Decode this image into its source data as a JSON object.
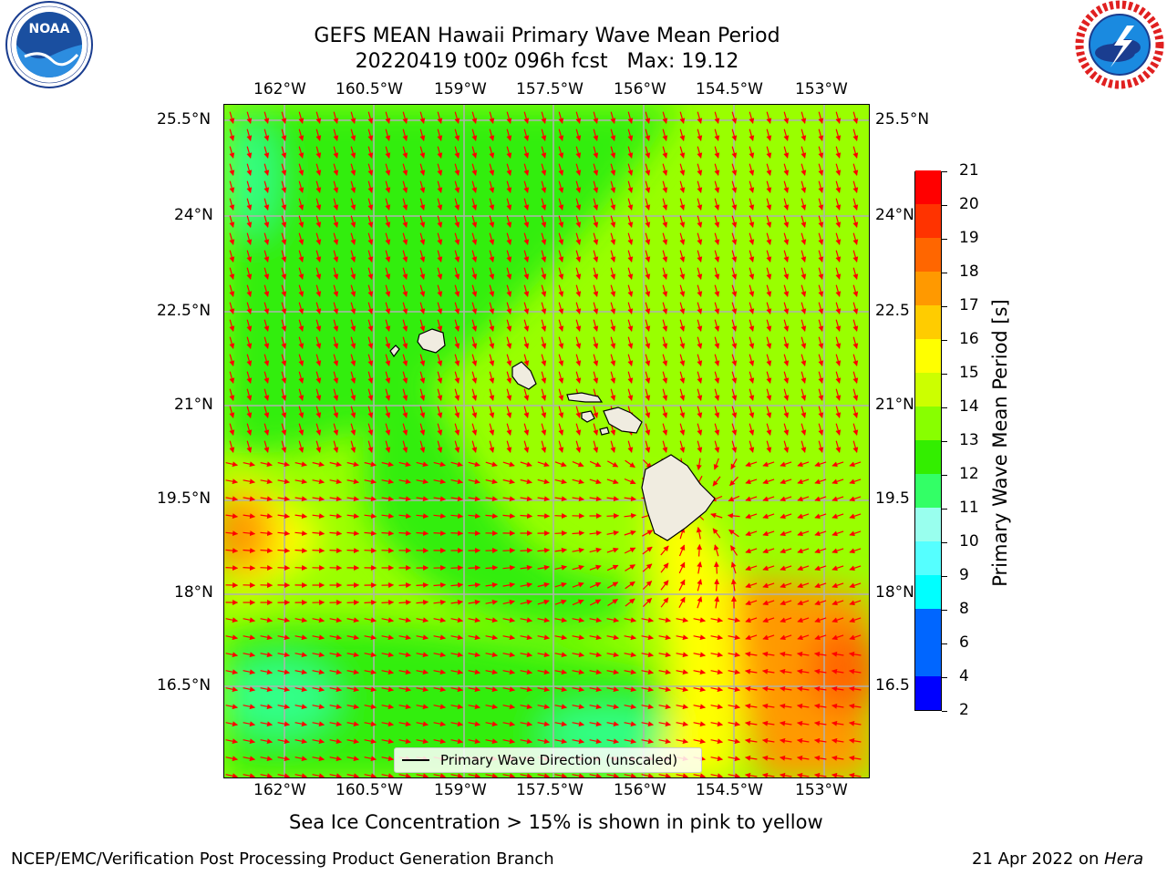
{
  "title": {
    "line1": "GEFS MEAN Hawaii Primary Wave Mean Period",
    "line2": "20220419 t00z 096h fcst   Max: 19.12"
  },
  "axes": {
    "lon_labels": [
      "162°W",
      "160.5°W",
      "159°W",
      "157.5°W",
      "156°W",
      "154.5°W",
      "153°W"
    ],
    "lat_labels": [
      "25.5°N",
      "24°N",
      "22.5°N",
      "21°N",
      "19.5°N",
      "18°N",
      "16.5°N"
    ],
    "lat_labels_right": [
      "25.5°N",
      "24°N",
      "22.5",
      "21°N",
      "19.5",
      "18°N",
      "16.5"
    ]
  },
  "colorbar": {
    "title": "Primary Wave Mean Period [s]",
    "tick_labels": [
      "2",
      "4",
      "6",
      "8",
      "9",
      "10",
      "11",
      "12",
      "13",
      "14",
      "15",
      "16",
      "17",
      "18",
      "19",
      "20",
      "21"
    ],
    "colors": [
      "#0000ff",
      "#0066ff",
      "#00ffff",
      "#55ffff",
      "#99ffee",
      "#33ff66",
      "#33ee00",
      "#88ff00",
      "#ccff00",
      "#ffff00",
      "#ffcc00",
      "#ff9900",
      "#ff6600",
      "#ff3300",
      "#ff0000"
    ]
  },
  "legend": {
    "label": "Primary Wave Direction (unscaled)"
  },
  "footer": {
    "note": "Sea Ice Concentration > 15% is shown in pink to yellow",
    "credit": "NCEP/EMC/Verification Post Processing Product Generation Branch",
    "date": "21 Apr 2022 on ",
    "machine": "Hera"
  },
  "logos": {
    "left": {
      "name": "NOAA",
      "text": "NOAA",
      "ring_text": "NATIONAL OCEANIC AND ATMOSPHERIC ADMINISTRATION · U.S. DEPARTMENT OF COMMERCE"
    },
    "right": {
      "name": "National Weather Service",
      "ring_text": "NATIONAL WEATHER SERVICE"
    }
  },
  "colors": {
    "green_zone": "#33ee11",
    "yellowgreen_zone": "#99ff00",
    "yellow_zone": "#ffff00",
    "orange_zone": "#ff9900",
    "cyan_patch": "#33ff88",
    "arrow": "#ff0000",
    "land": "#f0ece0",
    "grid": "#b0b0b0"
  }
}
